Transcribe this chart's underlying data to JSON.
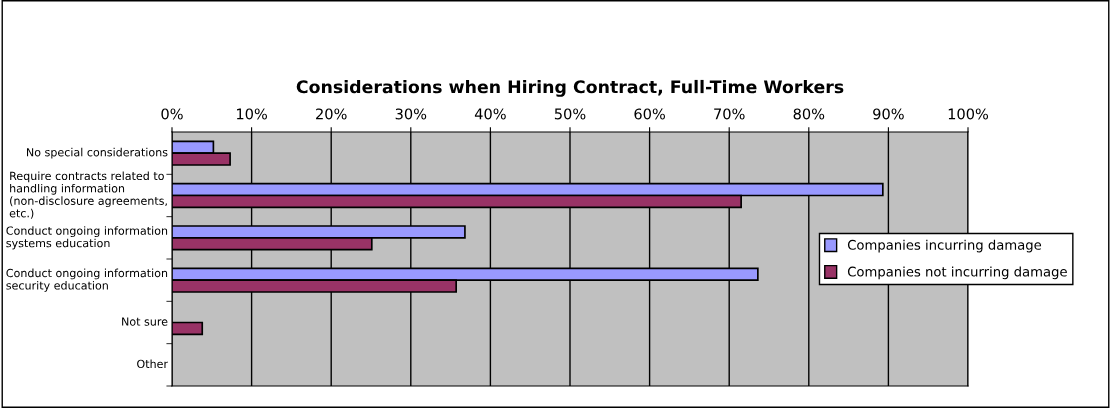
{
  "chart_data": {
    "type": "bar",
    "orientation": "horizontal",
    "title": "Considerations when Hiring Contract, Full-Time Workers",
    "categories": [
      "No special considerations",
      "Require contracts related to handling information (non-disclosure agreements, etc.)",
      "Conduct ongoing information systems education",
      "Conduct ongoing information security education",
      "Not sure",
      "Other"
    ],
    "series": [
      {
        "name": "Companies incurring damage",
        "color": "#9999ff",
        "values": [
          5.2,
          89.3,
          36.8,
          73.6,
          null,
          null
        ]
      },
      {
        "name": "Companies not incurring damage",
        "color": "#993366",
        "values": [
          7.3,
          71.5,
          25.1,
          35.7,
          3.8,
          null
        ]
      }
    ],
    "xlim": [
      0,
      100
    ],
    "xticks": [
      {
        "value": 0,
        "label": "0%"
      },
      {
        "value": 10,
        "label": "10%"
      },
      {
        "value": 20,
        "label": "20%"
      },
      {
        "value": 30,
        "label": "30%"
      },
      {
        "value": 40,
        "label": "40%"
      },
      {
        "value": 50,
        "label": "50%"
      },
      {
        "value": 60,
        "label": "60%"
      },
      {
        "value": 70,
        "label": "70%"
      },
      {
        "value": 80,
        "label": "80%"
      },
      {
        "value": 90,
        "label": "90%"
      },
      {
        "value": 100,
        "label": "100%"
      }
    ],
    "grid": "x",
    "legend": "right"
  }
}
